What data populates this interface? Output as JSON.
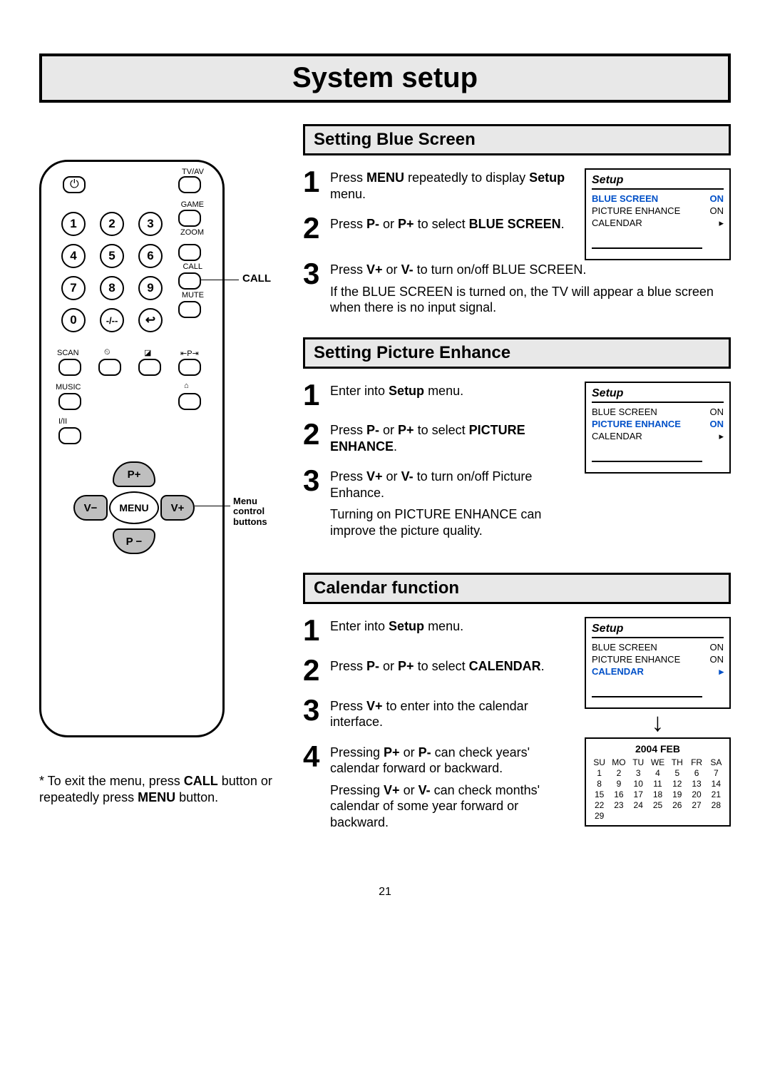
{
  "pageTitle": "System setup",
  "pageNumber": "21",
  "exitNote": {
    "prefix": "* To exit the menu, press ",
    "bold1": "CALL",
    "mid": " button or repeatedly press ",
    "bold2": "MENU",
    "suffix": " button."
  },
  "remote": {
    "callLabel": "CALL",
    "menuLabel": "Menu control buttons",
    "labels": {
      "tvav": "TV/AV",
      "game": "GAME",
      "zoom": "ZOOM",
      "call": "CALL",
      "mute": "MUTE",
      "scan": "SCAN",
      "music": "MUSIC",
      "iII": "I/II"
    },
    "nums": [
      "1",
      "2",
      "3",
      "4",
      "5",
      "6",
      "7",
      "8",
      "9",
      "0",
      "-/--",
      "↩"
    ],
    "dpad": {
      "up": "P+",
      "down": "P −",
      "left": "V−",
      "right": "V+",
      "center": "MENU"
    }
  },
  "sections": {
    "blue": {
      "title": "Setting Blue Screen",
      "steps": [
        {
          "n": "1",
          "parts": [
            "Press ",
            "MENU",
            " repeatedly to display ",
            "Setup",
            " menu."
          ]
        },
        {
          "n": "2",
          "parts": [
            "Press ",
            "P-",
            " or ",
            "P+",
            " to select ",
            "BLUE SCREEN",
            "."
          ]
        },
        {
          "n": "3",
          "parts": [
            "Press ",
            "V+",
            " or ",
            "V-",
            " to turn on/off BLUE SCREEN."
          ],
          "after": "If the BLUE SCREEN is turned on, the TV will appear a blue screen when there is no input signal."
        }
      ],
      "menu": {
        "title": "Setup",
        "rows": [
          {
            "l": "BLUE SCREEN",
            "r": "ON",
            "hl": true
          },
          {
            "l": "PICTURE ENHANCE",
            "r": "ON"
          },
          {
            "l": "CALENDAR",
            "r": "▸"
          }
        ]
      }
    },
    "picture": {
      "title": "Setting Picture Enhance",
      "steps": [
        {
          "n": "1",
          "parts": [
            "Enter into ",
            "Setup",
            " menu."
          ]
        },
        {
          "n": "2",
          "parts": [
            "Press ",
            "P-",
            " or ",
            "P+",
            " to select ",
            "PICTURE ENHANCE",
            "."
          ]
        },
        {
          "n": "3",
          "parts": [
            "Press ",
            "V+",
            " or ",
            "V-",
            " to turn on/off Picture Enhance."
          ],
          "after": "Turning on PICTURE ENHANCE can improve the picture quality."
        }
      ],
      "menu": {
        "title": "Setup",
        "rows": [
          {
            "l": "BLUE SCREEN",
            "r": "ON"
          },
          {
            "l": "PICTURE ENHANCE",
            "r": "ON",
            "hl": true
          },
          {
            "l": "CALENDAR",
            "r": "▸"
          }
        ]
      }
    },
    "calendar": {
      "title": "Calendar function",
      "steps": [
        {
          "n": "1",
          "parts": [
            "Enter into ",
            "Setup",
            " menu."
          ]
        },
        {
          "n": "2",
          "parts": [
            "Press ",
            "P-",
            " or ",
            "P+",
            " to select ",
            "CALENDAR",
            "."
          ]
        },
        {
          "n": "3",
          "parts": [
            "Press ",
            "V+",
            " to enter into the calendar interface."
          ]
        },
        {
          "n": "4",
          "parts": [
            "Pressing ",
            "P+",
            " or ",
            "P-",
            " can check years' calendar forward or backward."
          ],
          "after2parts": [
            "Pressing ",
            "V+",
            " or ",
            "V-",
            " can check months' calendar of some year forward or backward."
          ]
        }
      ],
      "menu": {
        "title": "Setup",
        "rows": [
          {
            "l": "BLUE SCREEN",
            "r": "ON"
          },
          {
            "l": "PICTURE ENHANCE",
            "r": "ON"
          },
          {
            "l": "CALENDAR",
            "r": "▸",
            "hl": true
          }
        ]
      },
      "cal": {
        "title": "2004 FEB",
        "daysHead": [
          "SU",
          "MO",
          "TU",
          "WE",
          "TH",
          "FR",
          "SA"
        ],
        "days": [
          "1",
          "2",
          "3",
          "4",
          "5",
          "6",
          "7",
          "8",
          "9",
          "10",
          "11",
          "12",
          "13",
          "14",
          "15",
          "16",
          "17",
          "18",
          "19",
          "20",
          "21",
          "22",
          "23",
          "24",
          "25",
          "26",
          "27",
          "28",
          "29",
          "",
          "",
          "",
          "",
          "",
          ""
        ]
      }
    }
  }
}
